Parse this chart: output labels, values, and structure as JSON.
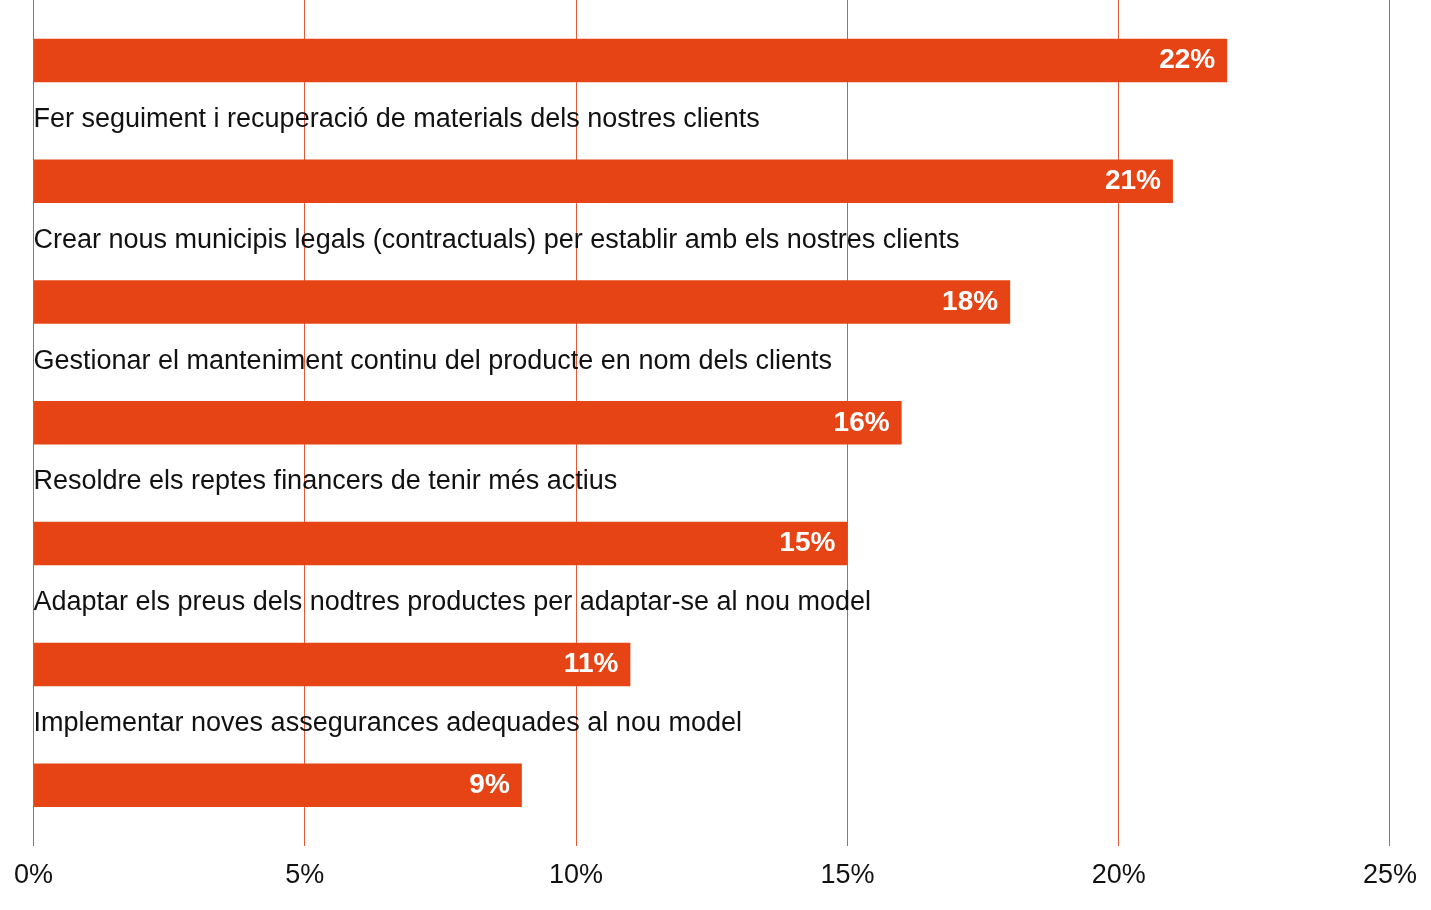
{
  "chart_data": {
    "type": "bar",
    "orientation": "horizontal",
    "categories": [
      null,
      "Fer seguiment i recuperació de materials dels nostres clients",
      "Crear nous municipis legals (contractuals) per establir amb els nostres clients",
      "Gestionar el manteniment continu del producte en nom dels clients",
      "Resoldre els reptes financers de tenir més actius",
      "Adaptar els preus dels nodtres productes per adaptar-se al nou model",
      "Implementar noves assegurances adequades al nou model"
    ],
    "values": [
      22,
      21,
      18,
      16,
      15,
      11,
      9
    ],
    "value_labels": [
      "22%",
      "21%",
      "18%",
      "16%",
      "15%",
      "11%",
      "9%"
    ],
    "color": "#e64414",
    "xlim": [
      0,
      25
    ],
    "xticks": [
      {
        "value": 0,
        "label": "0%"
      },
      {
        "value": 5,
        "label": "5%"
      },
      {
        "value": 10,
        "label": "10%"
      },
      {
        "value": 15,
        "label": "15%"
      },
      {
        "value": 20,
        "label": "20%"
      },
      {
        "value": 25,
        "label": "25%"
      }
    ],
    "grid": "x",
    "legend": false
  }
}
